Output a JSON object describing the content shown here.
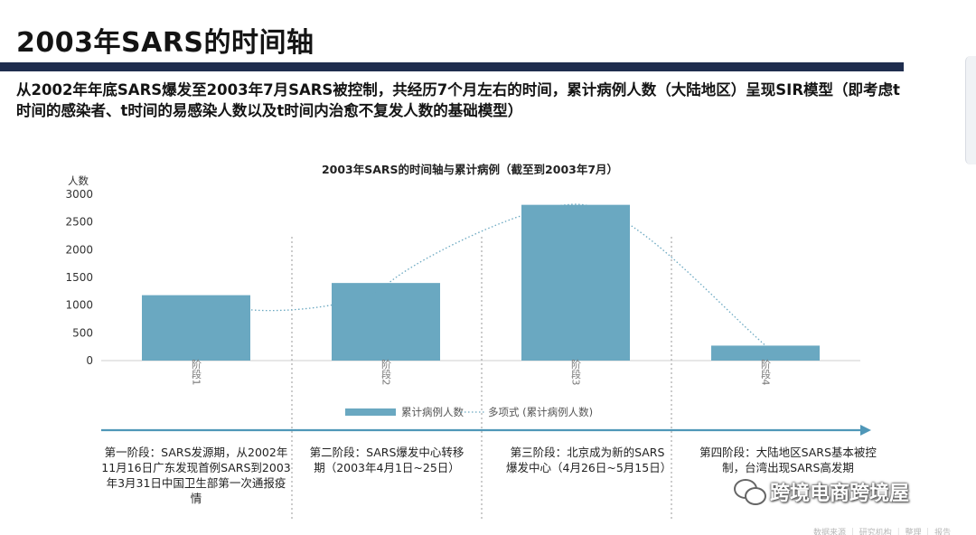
{
  "slide": {
    "title": "2003年SARS的时间轴",
    "summary": "从2002年年底SARS爆发至2003年7月SARS被控制，共经历7个月左右的时间，累计病例人数（大陆地区）呈现SIR模型（即考虑t时间的感染者、t时间的易感染人数以及t时间内治愈不复发人数的基础模型）",
    "footer": "数据来源 ｜ 研究机构 ｜ 整理 ｜ 报告"
  },
  "chart_data": {
    "type": "bar",
    "title": "2003年SARS的时间轴与累计病例（截至到2003年7月）",
    "ylabel": "人数",
    "ylim": [
      0,
      3000
    ],
    "yticks": [
      "3000",
      "2500",
      "2000",
      "1500",
      "1000",
      "500",
      "0"
    ],
    "categories": [
      "阶段1",
      "阶段2",
      "阶段3",
      "阶段4"
    ],
    "series": [
      {
        "name": "累计病例人数",
        "values": [
          1180,
          1400,
          2810,
          270
        ],
        "color": "#6aa8c1"
      }
    ],
    "trendline": {
      "name": "多项式 (累计病例人数)",
      "color": "#6aa8c1"
    },
    "legend": "bottom"
  },
  "phases": [
    {
      "text": "第一阶段：SARS发源期，从2002年11月16日广东发现首例SARS到2003年3月31日中国卫生部第一次通报疫情"
    },
    {
      "text": "第二阶段：SARS爆发中心转移期（2003年4月1日~25日）"
    },
    {
      "text": "第三阶段：北京成为新的SARS爆发中心（4月26日~5月15日）"
    },
    {
      "text": "第四阶段：大陆地区SARS基本被控制，台湾出现SARS高发期"
    }
  ],
  "watermark": {
    "text": "跨境电商跨境屋",
    "icon": "wechat-icon"
  },
  "colors": {
    "title_rule": "#1f2d4e",
    "bar": "#6aa8c1",
    "axis_arrow": "#4f97b8"
  }
}
